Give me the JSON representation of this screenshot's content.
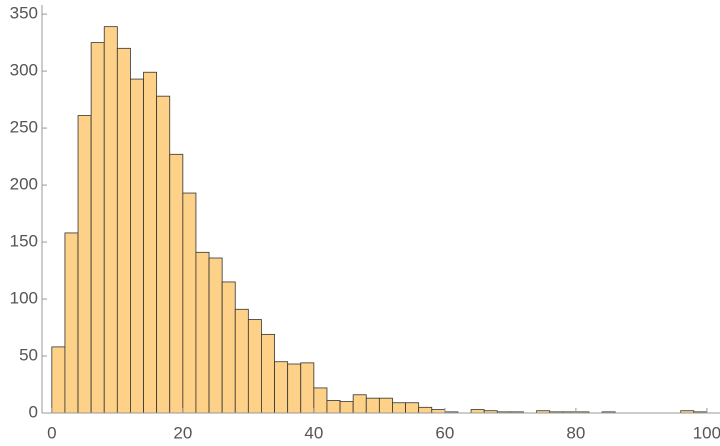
{
  "chart_data": {
    "type": "histogram",
    "bins": [
      0,
      2,
      4,
      6,
      8,
      10,
      12,
      14,
      16,
      18,
      20,
      22,
      24,
      26,
      28,
      30,
      32,
      34,
      36,
      38,
      40,
      42,
      44,
      46,
      48,
      50,
      52,
      54,
      56,
      58,
      60,
      62,
      64,
      66,
      68,
      70,
      72,
      74,
      76,
      78,
      80,
      82,
      84,
      86,
      88,
      90,
      92,
      94,
      96,
      98,
      100
    ],
    "counts": [
      58,
      158,
      261,
      325,
      339,
      320,
      293,
      299,
      278,
      227,
      193,
      141,
      136,
      115,
      91,
      82,
      69,
      45,
      43,
      44,
      22,
      11,
      10,
      16,
      13,
      13,
      9,
      9,
      5,
      3,
      1,
      0,
      3,
      2,
      1,
      1,
      0,
      2,
      1,
      1,
      1,
      0,
      1,
      0,
      0,
      0,
      0,
      0,
      2,
      1
    ],
    "color": "#fdd188",
    "xlim": [
      -1.5,
      102
    ],
    "ylim": [
      0,
      358
    ],
    "xticks": [
      0,
      20,
      40,
      60,
      80,
      100
    ],
    "yticks": [
      0,
      50,
      100,
      150,
      200,
      250,
      300,
      350
    ]
  }
}
